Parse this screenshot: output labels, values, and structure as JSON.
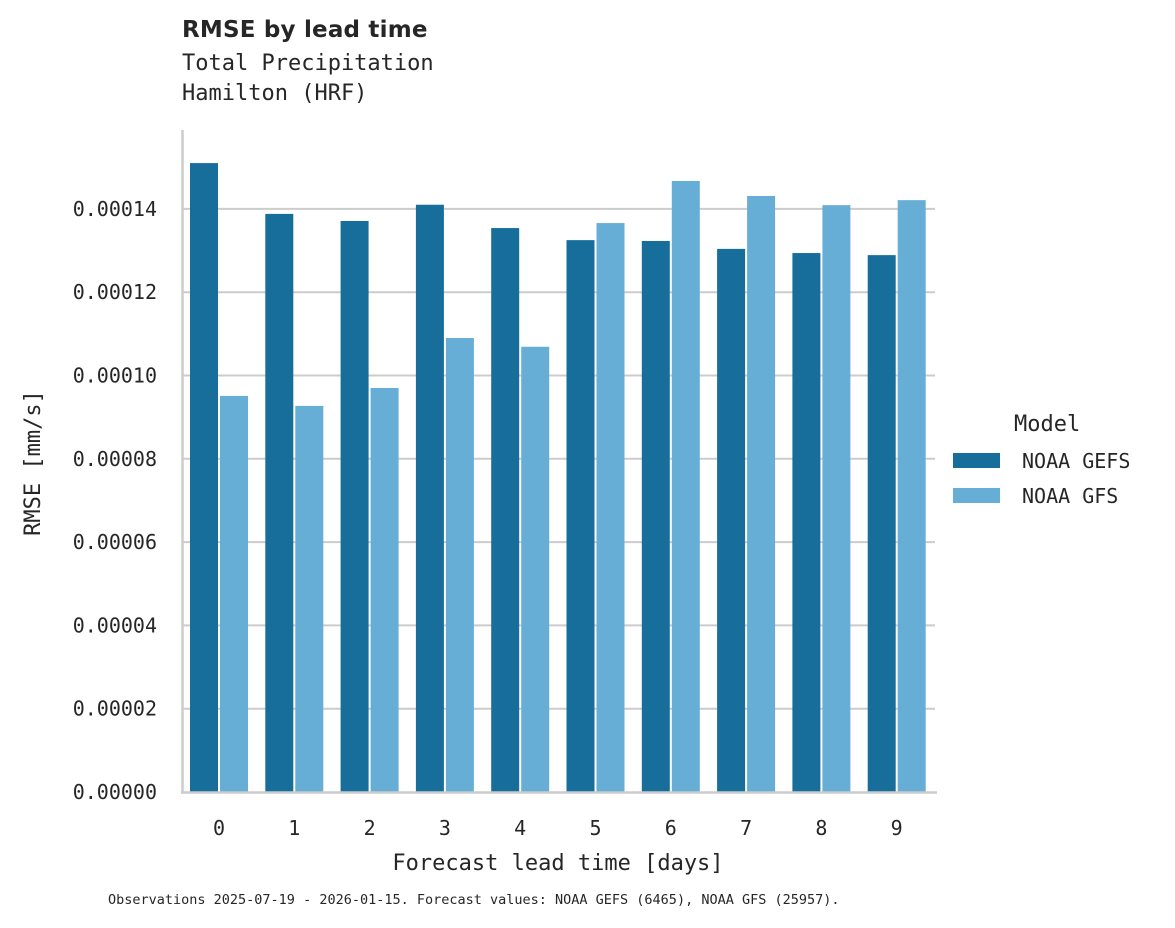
{
  "header": {
    "title": "RMSE by lead time",
    "subtitle_line1": "Total Precipitation",
    "subtitle_line2": "Hamilton (HRF)"
  },
  "axes": {
    "xlabel": "Forecast lead time [days]",
    "ylabel": "RMSE [mm/s]",
    "yticks": [
      "0.00000",
      "0.00002",
      "0.00004",
      "0.00006",
      "0.00008",
      "0.00010",
      "0.00012",
      "0.00014"
    ],
    "xticks": [
      "0",
      "1",
      "2",
      "3",
      "4",
      "5",
      "6",
      "7",
      "8",
      "9"
    ]
  },
  "legend": {
    "title": "Model",
    "items": [
      {
        "label": "NOAA GEFS",
        "color": "#186e9b"
      },
      {
        "label": "NOAA GFS",
        "color": "#67aed6"
      }
    ]
  },
  "footnote": "Observations 2025-07-19 - 2026-01-15. Forecast values: NOAA GEFS (6465), NOAA GFS (25957).",
  "chart_data": {
    "type": "bar",
    "title": "RMSE by lead time",
    "subtitle": "Total Precipitation / Hamilton (HRF)",
    "xlabel": "Forecast lead time [days]",
    "ylabel": "RMSE [mm/s]",
    "categories": [
      "0",
      "1",
      "2",
      "3",
      "4",
      "5",
      "6",
      "7",
      "8",
      "9"
    ],
    "series": [
      {
        "name": "NOAA GEFS",
        "color": "#186e9b",
        "values": [
          0.000151,
          0.0001388,
          0.0001371,
          0.000141,
          0.0001354,
          0.0001325,
          0.0001323,
          0.0001304,
          0.0001294,
          0.0001289
        ]
      },
      {
        "name": "NOAA GFS",
        "color": "#67aed6",
        "values": [
          9.51e-05,
          9.27e-05,
          9.7e-05,
          0.000109,
          0.0001069,
          0.0001366,
          0.0001467,
          0.0001431,
          0.0001409,
          0.0001421
        ]
      }
    ],
    "ylim": [
      0,
      0.000159
    ],
    "yticks": [
      0,
      2e-05,
      4e-05,
      6e-05,
      8e-05,
      0.0001,
      0.00012,
      0.00014
    ],
    "grid": "horizontal",
    "legend_position": "right"
  }
}
